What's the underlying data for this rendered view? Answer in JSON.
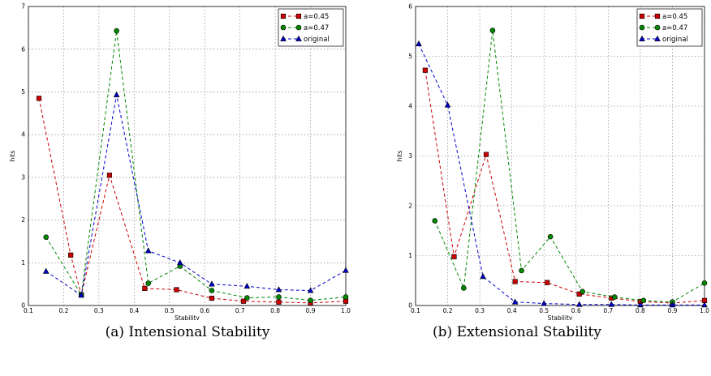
{
  "chart_data": [
    {
      "type": "line",
      "xlabel": "Stability",
      "ylabel": "hits",
      "xlim": [
        0.1,
        1.0
      ],
      "ylim": [
        0,
        7
      ],
      "xticks": [
        "0.1",
        "0.2",
        "0.3",
        "0.4",
        "0.5",
        "0.6",
        "0.7",
        "0.8",
        "0.9",
        "1.0"
      ],
      "yticks": [
        "0",
        "1",
        "2",
        "3",
        "4",
        "5",
        "6",
        "7"
      ],
      "grid": true,
      "legend_position": "top-right",
      "caption": "(a) Intensional Stability",
      "series": [
        {
          "name": "a=0.45",
          "color": "#cc0000",
          "marker": "square",
          "points": [
            [
              0.13,
              4.85
            ],
            [
              0.22,
              1.18
            ],
            [
              0.25,
              0.25
            ],
            [
              0.33,
              3.05
            ],
            [
              0.43,
              0.4
            ],
            [
              0.52,
              0.37
            ],
            [
              0.62,
              0.17
            ],
            [
              0.71,
              0.1
            ],
            [
              0.81,
              0.08
            ],
            [
              0.9,
              0.06
            ],
            [
              1.0,
              0.1
            ]
          ]
        },
        {
          "name": "a=0.47",
          "color": "#008800",
          "marker": "circle",
          "points": [
            [
              0.15,
              1.6
            ],
            [
              0.25,
              0.25
            ],
            [
              0.35,
              6.43
            ],
            [
              0.44,
              0.52
            ],
            [
              0.53,
              0.92
            ],
            [
              0.62,
              0.35
            ],
            [
              0.72,
              0.18
            ],
            [
              0.81,
              0.2
            ],
            [
              0.9,
              0.12
            ],
            [
              1.0,
              0.2
            ]
          ]
        },
        {
          "name": "original",
          "color": "#0000cc",
          "marker": "triangle",
          "points": [
            [
              0.15,
              0.8
            ],
            [
              0.25,
              0.24
            ],
            [
              0.35,
              4.93
            ],
            [
              0.44,
              1.28
            ],
            [
              0.53,
              1.0
            ],
            [
              0.62,
              0.5
            ],
            [
              0.72,
              0.45
            ],
            [
              0.81,
              0.37
            ],
            [
              0.9,
              0.35
            ],
            [
              1.0,
              0.82
            ]
          ]
        }
      ]
    },
    {
      "type": "line",
      "xlabel": "Stability",
      "ylabel": "hits",
      "xlim": [
        0.1,
        1.0
      ],
      "ylim": [
        0,
        6
      ],
      "xticks": [
        "0.1",
        "0.2",
        "0.3",
        "0.4",
        "0.5",
        "0.6",
        "0.7",
        "0.8",
        "0.9",
        "1.0"
      ],
      "yticks": [
        "0",
        "1",
        "2",
        "3",
        "4",
        "5",
        "6"
      ],
      "grid": true,
      "legend_position": "top-right",
      "caption": "(b) Extensional Stability",
      "series": [
        {
          "name": "a=0.45",
          "color": "#cc0000",
          "marker": "square",
          "points": [
            [
              0.13,
              4.72
            ],
            [
              0.22,
              0.98
            ],
            [
              0.32,
              3.03
            ],
            [
              0.41,
              0.48
            ],
            [
              0.51,
              0.46
            ],
            [
              0.61,
              0.23
            ],
            [
              0.71,
              0.15
            ],
            [
              0.8,
              0.08
            ],
            [
              0.9,
              0.05
            ],
            [
              1.0,
              0.1
            ]
          ]
        },
        {
          "name": "a=0.47",
          "color": "#008800",
          "marker": "circle",
          "points": [
            [
              0.16,
              1.7
            ],
            [
              0.25,
              0.35
            ],
            [
              0.34,
              5.52
            ],
            [
              0.43,
              0.7
            ],
            [
              0.52,
              1.38
            ],
            [
              0.62,
              0.28
            ],
            [
              0.72,
              0.17
            ],
            [
              0.81,
              0.1
            ],
            [
              0.9,
              0.07
            ],
            [
              1.0,
              0.45
            ]
          ]
        },
        {
          "name": "original",
          "color": "#0000cc",
          "marker": "triangle",
          "points": [
            [
              0.11,
              5.25
            ],
            [
              0.2,
              4.02
            ],
            [
              0.31,
              0.58
            ],
            [
              0.41,
              0.07
            ],
            [
              0.5,
              0.04
            ],
            [
              0.61,
              0.02
            ],
            [
              0.71,
              0.02
            ],
            [
              0.8,
              0.01
            ],
            [
              0.9,
              0.01
            ],
            [
              1.0,
              0.01
            ]
          ]
        }
      ]
    }
  ]
}
